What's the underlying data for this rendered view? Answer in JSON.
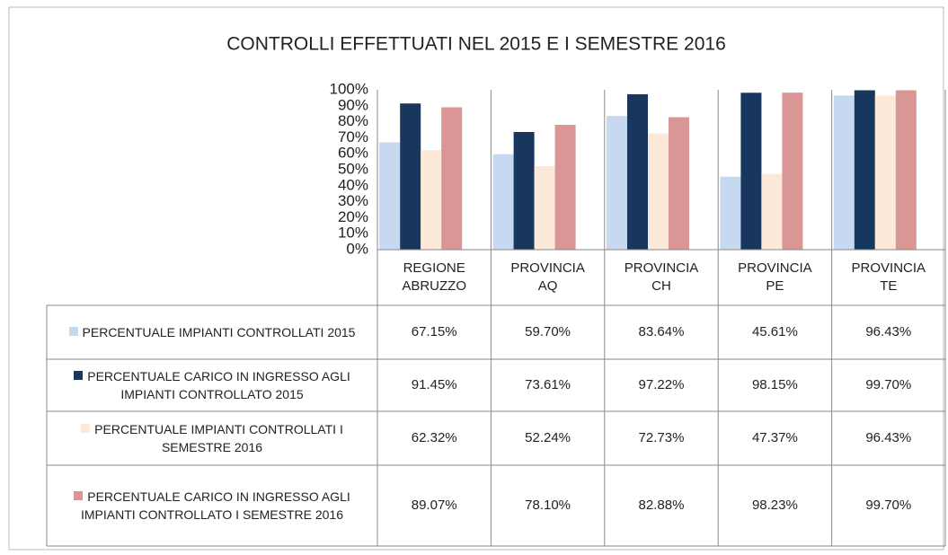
{
  "chart_data": {
    "type": "bar",
    "title": "CONTROLLI EFFETTUATI NEL 2015 E I SEMESTRE 2016",
    "categories": [
      "REGIONE ABRUZZO",
      "PROVINCIA AQ",
      "PROVINCIA CH",
      "PROVINCIA PE",
      "PROVINCIA TE"
    ],
    "series": [
      {
        "name": "PERCENTUALE IMPIANTI CONTROLLATI 2015",
        "color": "#c6d9f1",
        "values": [
          67.15,
          59.7,
          83.64,
          45.61,
          96.43
        ],
        "value_labels": [
          "67.15%",
          "59.70%",
          "83.64%",
          "45.61%",
          "96.43%"
        ]
      },
      {
        "name": "PERCENTUALE CARICO IN INGRESSO AGLI IMPIANTI CONTROLLATO 2015",
        "color": "#17375e",
        "values": [
          91.45,
          73.61,
          97.22,
          98.15,
          99.7
        ],
        "value_labels": [
          "91.45%",
          "73.61%",
          "97.22%",
          "98.15%",
          "99.70%"
        ]
      },
      {
        "name": "PERCENTUALE IMPIANTI CONTROLLATI I SEMESTRE 2016",
        "color": "#fde9d9",
        "values": [
          62.32,
          52.24,
          72.73,
          47.37,
          96.43
        ],
        "value_labels": [
          "62.32%",
          "52.24%",
          "72.73%",
          "47.37%",
          "96.43%"
        ]
      },
      {
        "name": "PERCENTUALE CARICO IN INGRESSO AGLI IMPIANTI CONTROLLATO I SEMESTRE 2016",
        "color": "#d99694",
        "values": [
          89.07,
          78.1,
          82.88,
          98.23,
          99.7
        ],
        "value_labels": [
          "89.07%",
          "78.10%",
          "82.88%",
          "98.23%",
          "99.70%"
        ]
      }
    ],
    "ylim": [
      0,
      100
    ],
    "yticks": [
      {
        "value": 0,
        "label": "0%"
      },
      {
        "value": 10,
        "label": "10%"
      },
      {
        "value": 20,
        "label": "20%"
      },
      {
        "value": 30,
        "label": "30%"
      },
      {
        "value": 40,
        "label": "40%"
      },
      {
        "value": 50,
        "label": "50%"
      },
      {
        "value": 60,
        "label": "60%"
      },
      {
        "value": 70,
        "label": "70%"
      },
      {
        "value": 80,
        "label": "80%"
      },
      {
        "value": 90,
        "label": "90%"
      },
      {
        "value": 100,
        "label": "100%"
      }
    ],
    "grid": false
  }
}
